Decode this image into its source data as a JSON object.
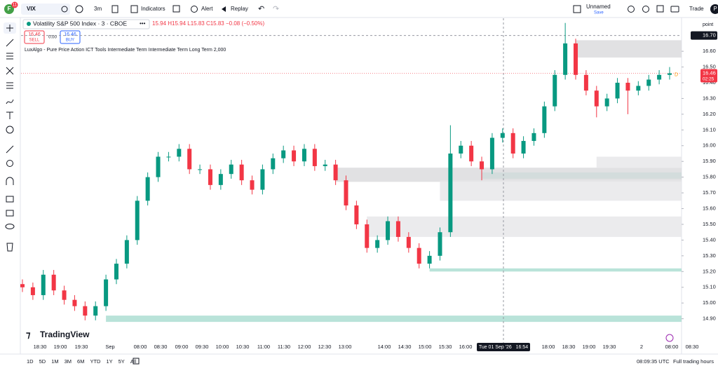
{
  "toolbar": {
    "avatar": "F",
    "badge": "11",
    "symbol": "VIX",
    "interval": "3m",
    "indicators": "Indicators",
    "alert": "Alert",
    "replay": "Replay",
    "layout": "Unnamed",
    "save": "Save",
    "trade": "Trade",
    "profile": "P"
  },
  "legend": {
    "ohlc": "15.94 H15.94 L15.83 C15.83 −0.08 (−0.50%)",
    "sell_price": "16.46",
    "sell": "SELL",
    "spread": "0.00",
    "buy_price": "16.46",
    "buy": "BUY",
    "indicator": "LuxAlgo - Pure Price Action ICT Tools Intermediate Term Intermediate Term Long Term 2,000"
  },
  "chart_data": {
    "type": "candlestick",
    "title": "Volatility S&P 500 Index · 3 · CBOE",
    "axis_unit": "point",
    "open": [
      15.12,
      15.1,
      15.05,
      15.18,
      15.08,
      15.02,
      14.98,
      14.92,
      14.98,
      15.15,
      15.25,
      15.4,
      15.65,
      15.8,
      15.93,
      15.93,
      15.98,
      15.85,
      15.85,
      15.75,
      15.82,
      15.88,
      15.78,
      15.72,
      15.85,
      15.92,
      15.97,
      15.9,
      15.98,
      15.87,
      15.88,
      15.78,
      15.62,
      15.5,
      15.35,
      15.4,
      15.52,
      15.42,
      15.35,
      15.25,
      15.3,
      15.45,
      15.95,
      16.0,
      15.9,
      15.85,
      16.05,
      16.08,
      15.95,
      16.03,
      16.08,
      16.25,
      16.45,
      16.65,
      16.45,
      16.35,
      16.25,
      16.3,
      16.4,
      16.35,
      16.38,
      16.42,
      16.45
    ],
    "high": [
      15.15,
      15.13,
      15.21,
      15.21,
      15.11,
      15.05,
      15.01,
      15.01,
      15.18,
      15.28,
      15.43,
      15.68,
      15.83,
      15.96,
      15.96,
      16.01,
      16.01,
      15.88,
      15.88,
      15.85,
      15.91,
      15.91,
      15.81,
      15.88,
      15.95,
      16.0,
      16.0,
      16.01,
      16.01,
      15.91,
      15.91,
      15.81,
      15.65,
      15.53,
      15.43,
      15.55,
      15.55,
      15.45,
      15.38,
      15.33,
      15.48,
      16.13,
      16.03,
      16.03,
      15.93,
      16.08,
      16.11,
      16.11,
      16.06,
      16.11,
      16.28,
      16.48,
      16.78,
      16.68,
      16.48,
      16.38,
      16.33,
      16.43,
      16.43,
      16.41,
      16.45,
      16.48,
      16.5
    ],
    "low": [
      15.07,
      15.02,
      15.02,
      15.05,
      14.99,
      14.95,
      14.89,
      14.89,
      14.95,
      15.12,
      15.22,
      15.37,
      15.62,
      15.77,
      15.9,
      15.9,
      15.82,
      15.82,
      15.72,
      15.72,
      15.79,
      15.75,
      15.69,
      15.69,
      15.82,
      15.89,
      15.87,
      15.87,
      15.84,
      15.84,
      15.75,
      15.59,
      15.47,
      15.32,
      15.32,
      15.37,
      15.39,
      15.32,
      15.22,
      15.22,
      15.27,
      15.42,
      15.92,
      15.87,
      15.78,
      15.82,
      16.02,
      15.92,
      15.92,
      16.0,
      16.05,
      16.22,
      16.42,
      16.42,
      16.32,
      16.18,
      16.22,
      16.27,
      16.2,
      16.32,
      16.35,
      16.39,
      16.42
    ],
    "close": [
      15.1,
      15.05,
      15.18,
      15.08,
      15.02,
      14.98,
      14.92,
      14.98,
      15.15,
      15.25,
      15.4,
      15.65,
      15.8,
      15.93,
      15.93,
      15.98,
      15.85,
      15.85,
      15.75,
      15.82,
      15.88,
      15.78,
      15.72,
      15.85,
      15.92,
      15.97,
      15.9,
      15.98,
      15.87,
      15.88,
      15.78,
      15.62,
      15.5,
      15.35,
      15.4,
      15.52,
      15.42,
      15.35,
      15.25,
      15.3,
      15.45,
      15.95,
      16.0,
      15.9,
      15.85,
      16.05,
      16.08,
      15.95,
      16.03,
      16.08,
      16.25,
      16.45,
      16.65,
      16.45,
      16.35,
      16.25,
      16.3,
      16.4,
      16.35,
      16.38,
      16.42,
      16.45,
      16.46
    ],
    "up_color": "#089981",
    "down_color": "#f23645",
    "zones": [
      {
        "start": 8,
        "low": 14.88,
        "high": 14.92,
        "color": "#a8dccf"
      },
      {
        "start": 39,
        "low": 15.2,
        "high": 15.22,
        "color": "#a8dccf"
      },
      {
        "start": 44,
        "low": 15.79,
        "high": 15.83,
        "color": "#a8dccf"
      },
      {
        "start": 53,
        "low": 16.56,
        "high": 16.67,
        "color": "#d9d9dc"
      },
      {
        "start": 30,
        "low": 15.77,
        "high": 15.86,
        "color": "#d9d9dc"
      },
      {
        "start": 33,
        "low": 15.42,
        "high": 15.55,
        "color": "#e6e6e8"
      },
      {
        "start": 40,
        "low": 15.65,
        "high": 15.78,
        "color": "#e6e6e8"
      },
      {
        "start": 55,
        "low": 15.86,
        "high": 15.93,
        "color": "#e6e6e8"
      }
    ],
    "ylim": [
      14.72,
      16.81
    ],
    "yticks": [
      {
        "value": 14.9,
        "label": "14.90"
      },
      {
        "value": 15.0,
        "label": "15.00"
      },
      {
        "value": 15.1,
        "label": "15.10"
      },
      {
        "value": 15.2,
        "label": "15.20"
      },
      {
        "value": 15.3,
        "label": "15.30"
      },
      {
        "value": 15.4,
        "label": "15.40"
      },
      {
        "value": 15.5,
        "label": "15.50"
      },
      {
        "value": 15.6,
        "label": "15.60"
      },
      {
        "value": 15.7,
        "label": "15.70"
      },
      {
        "value": 15.8,
        "label": "15.80"
      },
      {
        "value": 15.9,
        "label": "15.90"
      },
      {
        "value": 16.0,
        "label": "16.00"
      },
      {
        "value": 16.1,
        "label": "16.10"
      },
      {
        "value": 16.2,
        "label": "16.20"
      },
      {
        "value": 16.3,
        "label": "16.30"
      },
      {
        "value": 16.4,
        "label": "16.40"
      },
      {
        "value": 16.5,
        "label": "16.50"
      },
      {
        "value": 16.6,
        "label": "16.60"
      }
    ],
    "last_price": {
      "value": 16.46,
      "label": "16.46"
    },
    "countdown": "02:25",
    "crosshair_price": {
      "value": 16.7,
      "label": "16.70"
    },
    "marker": "D",
    "xlabels": [
      "18:30",
      "19:00",
      "19:30",
      "Sep",
      "08:00",
      "08:30",
      "09:00",
      "09:30",
      "10:00",
      "10:30",
      "11:00",
      "11:30",
      "12:00",
      "12:30",
      "13:00",
      "14:00",
      "14:30",
      "15:00",
      "15:30",
      "16:00",
      "18:00",
      "18:30",
      "19:00",
      "19:30",
      "2",
      "08:00",
      "08:30"
    ],
    "crosshair_time": "Tue 01 Sep '26   16:54"
  },
  "brand": "TradingView",
  "footer": {
    "ranges": [
      "1D",
      "5D",
      "1M",
      "3M",
      "6M",
      "YTD",
      "1Y",
      "5Y",
      "All"
    ],
    "clock": "08:09:35 UTC",
    "session": "Full trading hours"
  }
}
